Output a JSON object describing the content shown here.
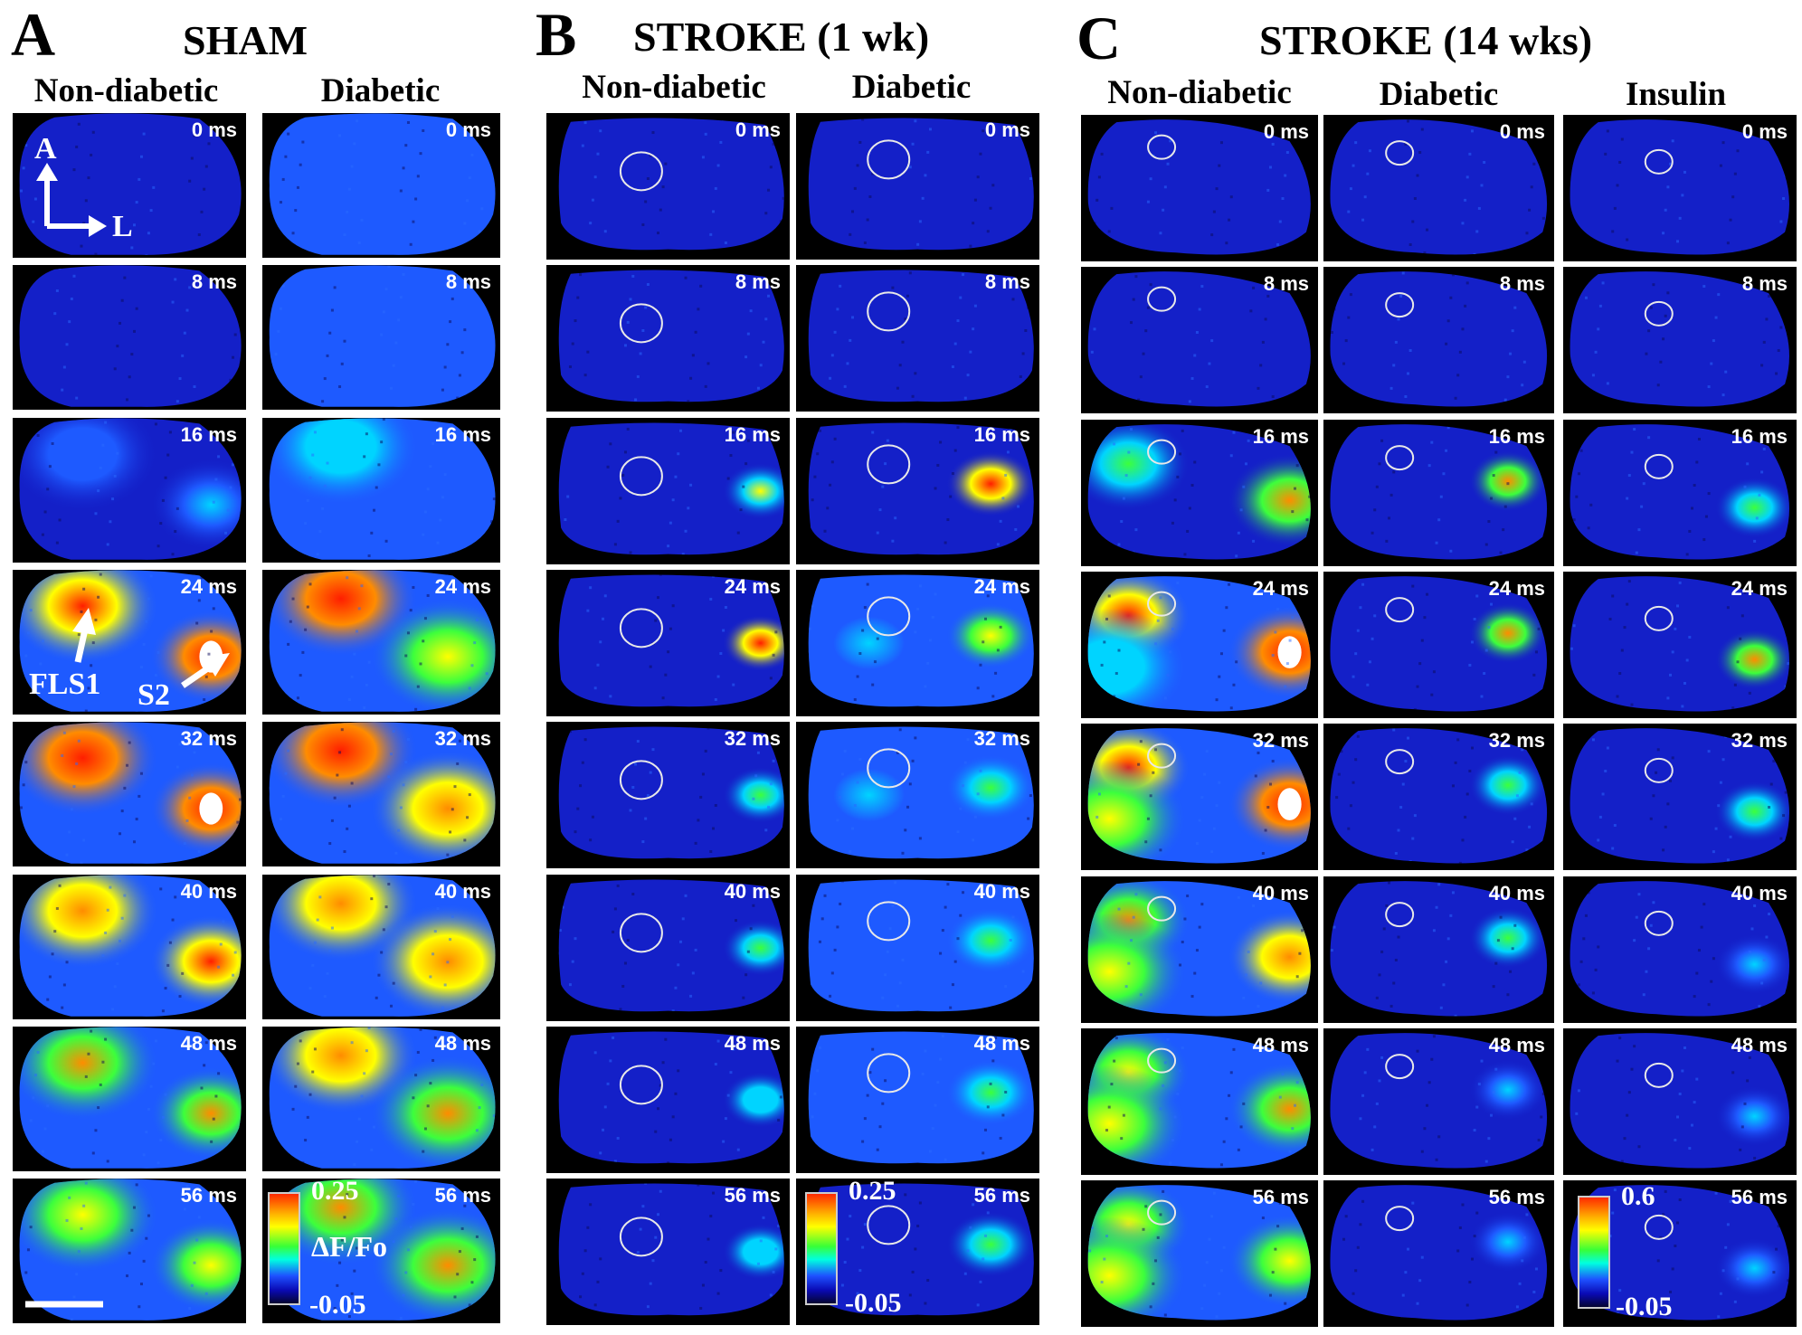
{
  "panels": [
    {
      "label": "A",
      "title": "SHAM",
      "columns": [
        "Non-diabetic",
        "Diabetic"
      ]
    },
    {
      "label": "B",
      "title": "STROKE (1 wk)",
      "columns": [
        "Non-diabetic",
        "Diabetic"
      ]
    },
    {
      "label": "C",
      "title": "STROKE (14 wks)",
      "columns": [
        "Non-diabetic",
        "Diabetic",
        "Insulin"
      ]
    }
  ],
  "times": [
    "0 ms",
    "8 ms",
    "16 ms",
    "24 ms",
    "32 ms",
    "40 ms",
    "48 ms",
    "56 ms"
  ],
  "colorbars": [
    {
      "name": "ΔF/Fo",
      "max": "0.25",
      "min": "-0.05"
    },
    {
      "max": "0.25",
      "min": "-0.05"
    },
    {
      "max": "0.6",
      "min": "-0.05"
    }
  ],
  "annotations": {
    "axis_anterior": "A",
    "axis_lateral": "L",
    "region_1": "FLS1",
    "region_2": "S2"
  },
  "colors": {
    "background_blue": "#1a2dd0",
    "colormap": [
      "#050532",
      "#0a0ab4",
      "#1e50ff",
      "#00ffe0",
      "#38ff38",
      "#ffff00",
      "#ffb000",
      "#ff2a00",
      "#ffffff"
    ]
  }
}
